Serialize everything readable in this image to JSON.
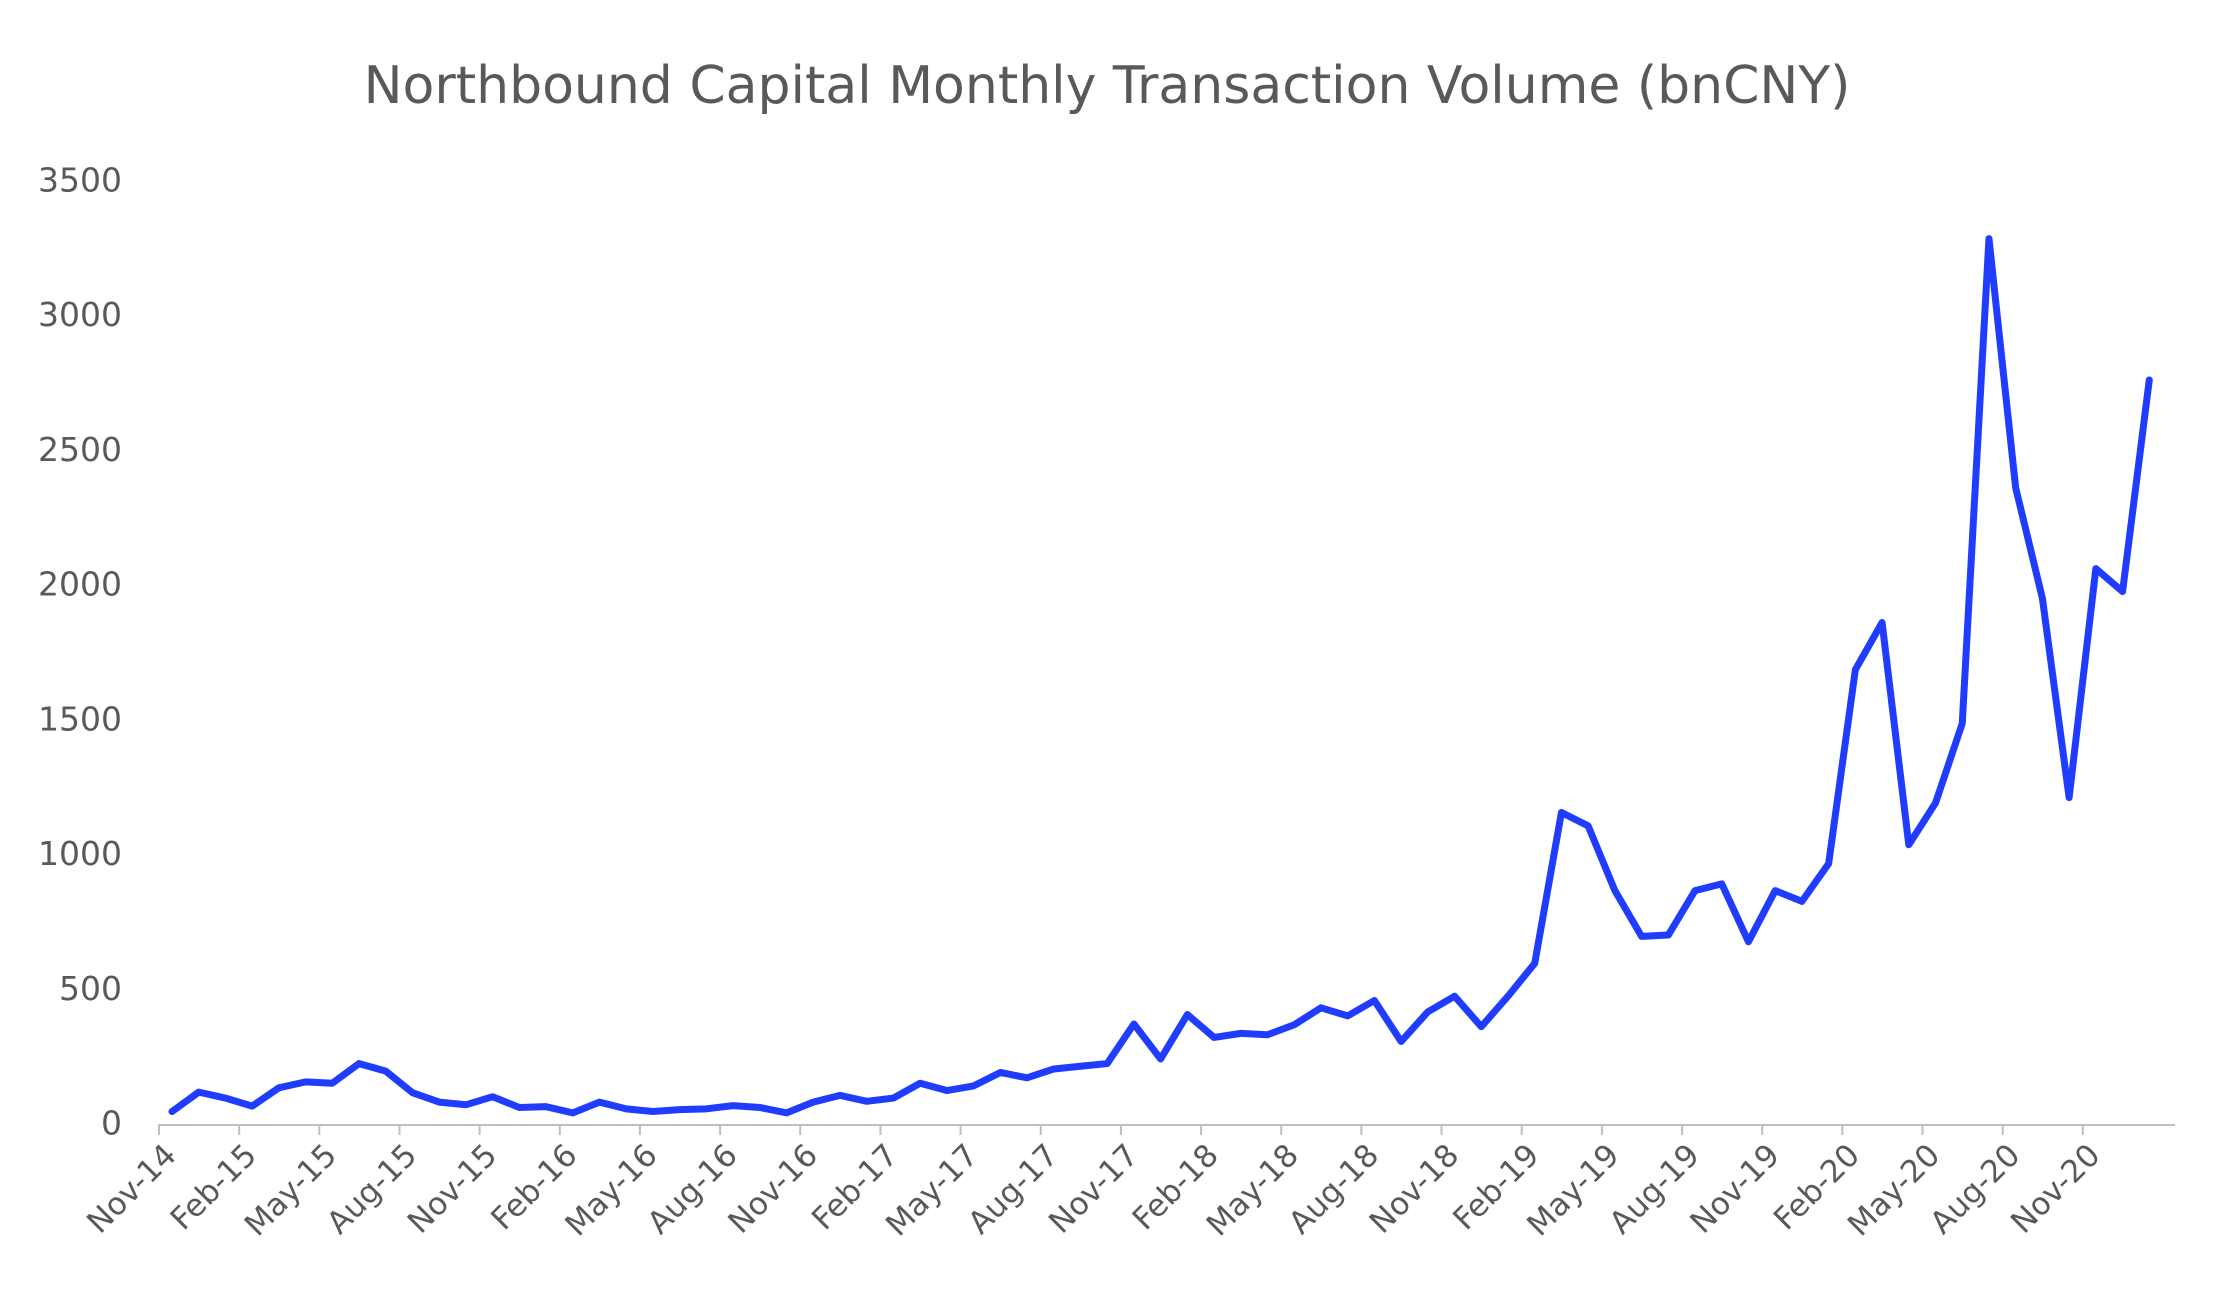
{
  "chart_data": {
    "type": "line",
    "title": "Northbound Capital Monthly Transaction Volume (bnCNY)",
    "categories": [
      "Nov-14",
      null,
      null,
      "Feb-15",
      null,
      null,
      "May-15",
      null,
      null,
      "Aug-15",
      null,
      null,
      "Nov-15",
      null,
      null,
      "Feb-16",
      null,
      null,
      "May-16",
      null,
      null,
      "Aug-16",
      null,
      null,
      "Nov-16",
      null,
      null,
      "Feb-17",
      null,
      null,
      "May-17",
      null,
      null,
      "Aug-17",
      null,
      null,
      "Nov-17",
      null,
      null,
      "Feb-18",
      null,
      null,
      "May-18",
      null,
      null,
      "Aug-18",
      null,
      null,
      "Nov-18",
      null,
      null,
      "Feb-19",
      null,
      null,
      "May-19",
      null,
      null,
      "Aug-19",
      null,
      null,
      "Nov-19",
      null,
      null,
      "Feb-20",
      null,
      null,
      "May-20",
      null,
      null,
      "Aug-20",
      null,
      null,
      "Nov-20",
      null,
      null
    ],
    "series": [
      {
        "color": "#1f3cff",
        "values": [
          50,
          122,
          100,
          70,
          138,
          160,
          155,
          228,
          200,
          120,
          85,
          75,
          105,
          65,
          68,
          45,
          85,
          60,
          50,
          57,
          60,
          72,
          65,
          45,
          85,
          110,
          88,
          100,
          155,
          128,
          145,
          195,
          175,
          208,
          218,
          228,
          375,
          245,
          410,
          325,
          340,
          335,
          372,
          435,
          405,
          462,
          310,
          420,
          478,
          365,
          478,
          600,
          1160,
          1110,
          870,
          700,
          705,
          870,
          895,
          680,
          870,
          830,
          970,
          1690,
          1865,
          1040,
          1195,
          1490,
          3290,
          2365,
          1955,
          1215,
          2065,
          1980,
          2765
        ]
      }
    ],
    "ylim": [
      0,
      3500
    ],
    "yticks": [
      0,
      500,
      1000,
      1500,
      2000,
      2500,
      3000,
      3500
    ],
    "grid": false
  }
}
